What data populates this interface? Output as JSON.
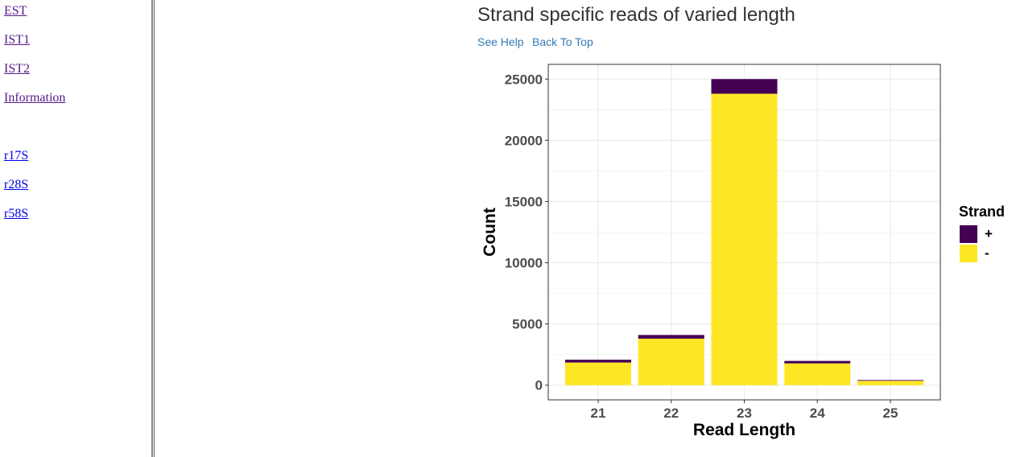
{
  "sidebar": {
    "links": [
      {
        "label": "EST ",
        "visited": true
      },
      {
        "label": "IST1 ",
        "visited": true
      },
      {
        "label": "IST2 ",
        "visited": true
      },
      {
        "label": "Information ",
        "visited": true
      },
      {
        "label": "r17S ",
        "visited": false
      },
      {
        "label": "r28S ",
        "visited": false
      },
      {
        "label": "r58S ",
        "visited": false
      }
    ]
  },
  "main": {
    "title": "Strand specific reads of varied length",
    "links": {
      "help": "See Help",
      "top": "Back To Top"
    }
  },
  "chart_data": {
    "type": "bar",
    "stacked": true,
    "categories": [
      "21",
      "22",
      "23",
      "24",
      "25"
    ],
    "series": [
      {
        "name": "-",
        "color": "#fde725",
        "values": [
          1850,
          3800,
          23800,
          1780,
          360
        ]
      },
      {
        "name": "+",
        "color": "#440154",
        "values": [
          230,
          300,
          1200,
          200,
          60
        ]
      }
    ],
    "xlabel": "Read Length",
    "ylabel": "Count",
    "ylim": [
      -1200,
      26200
    ],
    "yticks": [
      0,
      5000,
      10000,
      15000,
      20000,
      25000
    ],
    "grid": true,
    "legend": {
      "title": "Strand",
      "position": "right",
      "order": [
        "+",
        "-"
      ]
    }
  }
}
